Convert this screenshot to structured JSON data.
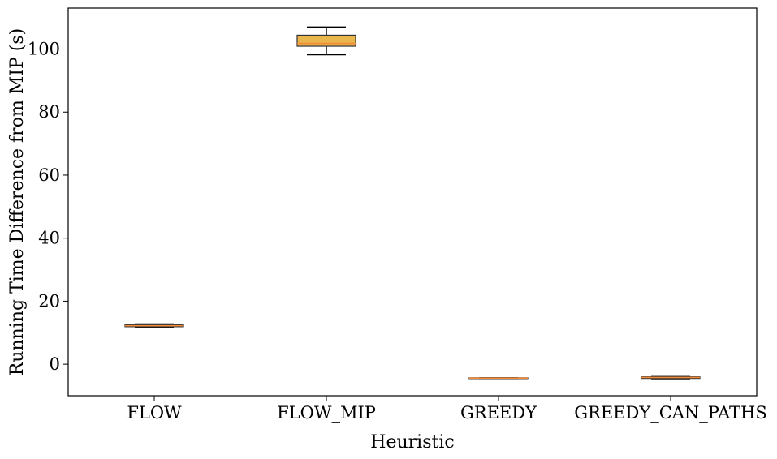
{
  "chart_data": {
    "type": "box",
    "title": "",
    "xlabel": "Heuristic",
    "ylabel": "Running Time Difference from MIP (s)",
    "ylim": [
      -10,
      113
    ],
    "yticks": [
      0,
      20,
      40,
      60,
      80,
      100
    ],
    "ytick_labels": [
      "0",
      "20",
      "40",
      "60",
      "80",
      "100"
    ],
    "grid": false,
    "legend": "none",
    "categories": [
      "FLOW",
      "FLOW_MIP",
      "GREEDY",
      "GREEDY_CAN_PATHS"
    ],
    "category_labels": [
      "FLOW",
      "FLOW_MIP",
      "GREEDY",
      "GREEDY_CAN_PATHS"
    ],
    "boxes": [
      {
        "category": "FLOW",
        "whisker_low": 11.6,
        "q1": 11.9,
        "median": 12.2,
        "q3": 12.5,
        "whisker_high": 12.8
      },
      {
        "category": "FLOW_MIP",
        "whisker_low": 98.2,
        "q1": 100.9,
        "median": 101.8,
        "q3": 104.4,
        "whisker_high": 107.0
      },
      {
        "category": "GREEDY",
        "whisker_low": -4.5,
        "q1": -4.4,
        "median": -4.4,
        "q3": -4.3,
        "whisker_high": -4.3
      },
      {
        "category": "GREEDY_CAN_PATHS",
        "whisker_low": -4.6,
        "q1": -4.5,
        "median": -4.2,
        "q3": -4.0,
        "whisker_high": -3.9
      }
    ],
    "colors": {
      "box_fill": "#e9b64d",
      "box_edge": "#333333",
      "median": "#ef8a3a",
      "whisker": "#000000"
    }
  }
}
